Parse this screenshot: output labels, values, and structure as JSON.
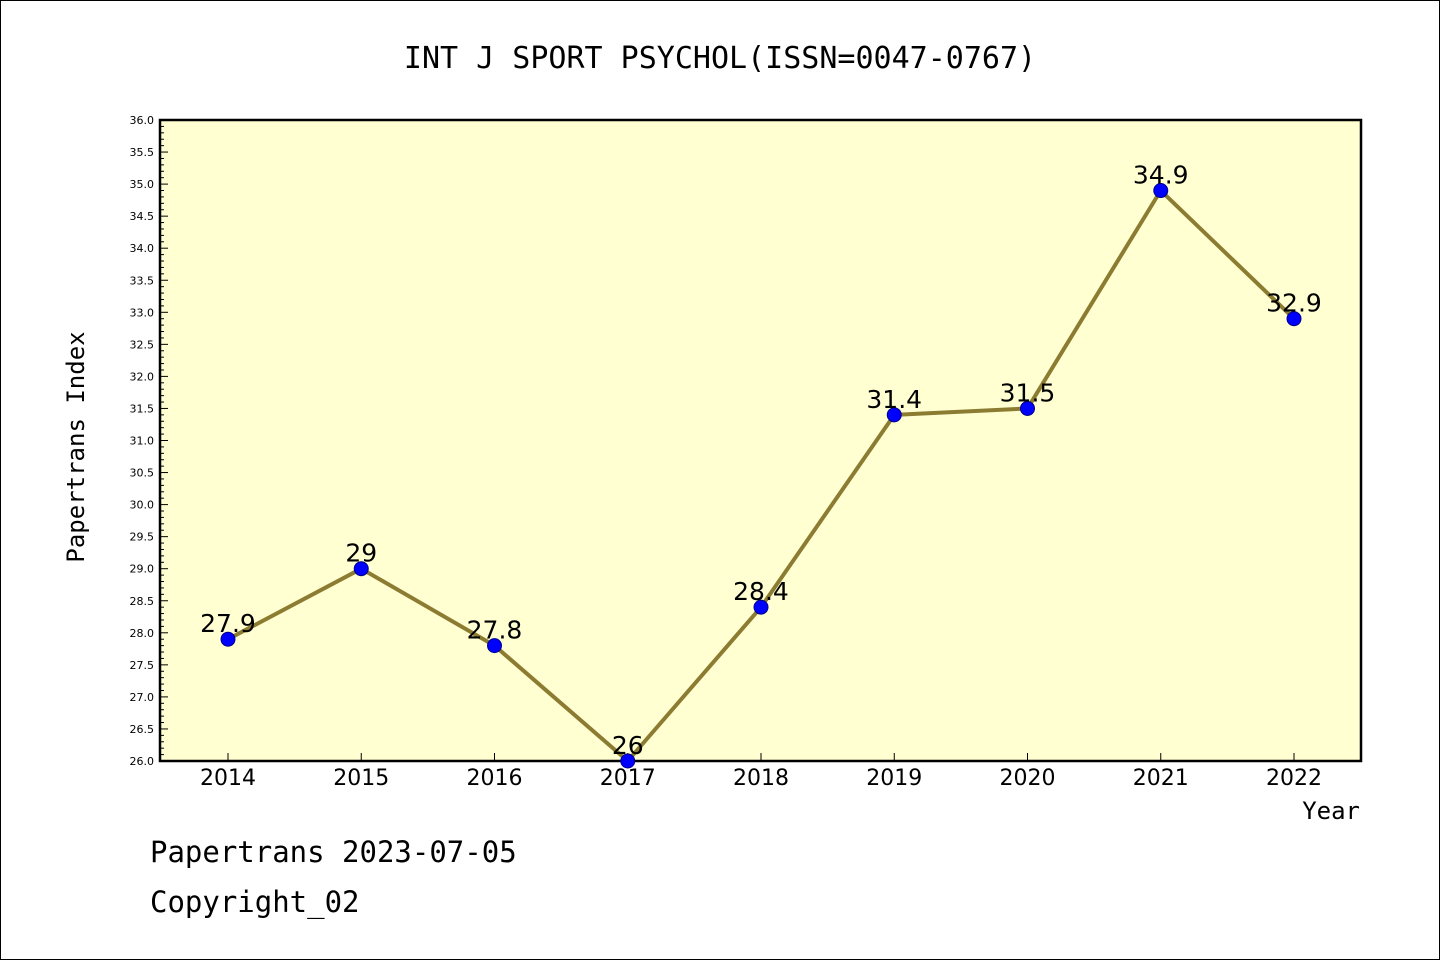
{
  "chart_data": {
    "type": "line",
    "title": "INT J SPORT PSYCHOL(ISSN=0047-0767)",
    "xlabel": "Year",
    "ylabel": "Papertrans Index",
    "categories": [
      "2014",
      "2015",
      "2016",
      "2017",
      "2018",
      "2019",
      "2020",
      "2021",
      "2022"
    ],
    "series": [
      {
        "values": [
          27.9,
          29,
          27.8,
          26,
          28.4,
          31.4,
          31.5,
          34.9,
          32.9
        ],
        "labels": [
          "27.9",
          "29",
          "27.8",
          "26",
          "28.4",
          "31.4",
          "31.5",
          "34.9",
          "32.9"
        ]
      }
    ],
    "ylim": [
      26.0,
      36.0
    ],
    "ytick_step": 0.5,
    "yticks": [
      "26.0",
      "26.5",
      "27.0",
      "27.5",
      "28.0",
      "28.5",
      "29.0",
      "29.5",
      "30.0",
      "30.5",
      "31.0",
      "31.5",
      "32.0",
      "32.5",
      "33.0",
      "33.5",
      "34.0",
      "34.5",
      "35.0",
      "35.5",
      "36.0"
    ],
    "grid": false,
    "colors": {
      "plot_background": "#ffffd2",
      "line": "#8c7c32",
      "marker": "#0000ff",
      "marker_edge": "#00008b"
    }
  },
  "footer": {
    "date_line": "Papertrans 2023-07-05",
    "copyright_line": "Copyright_02"
  }
}
